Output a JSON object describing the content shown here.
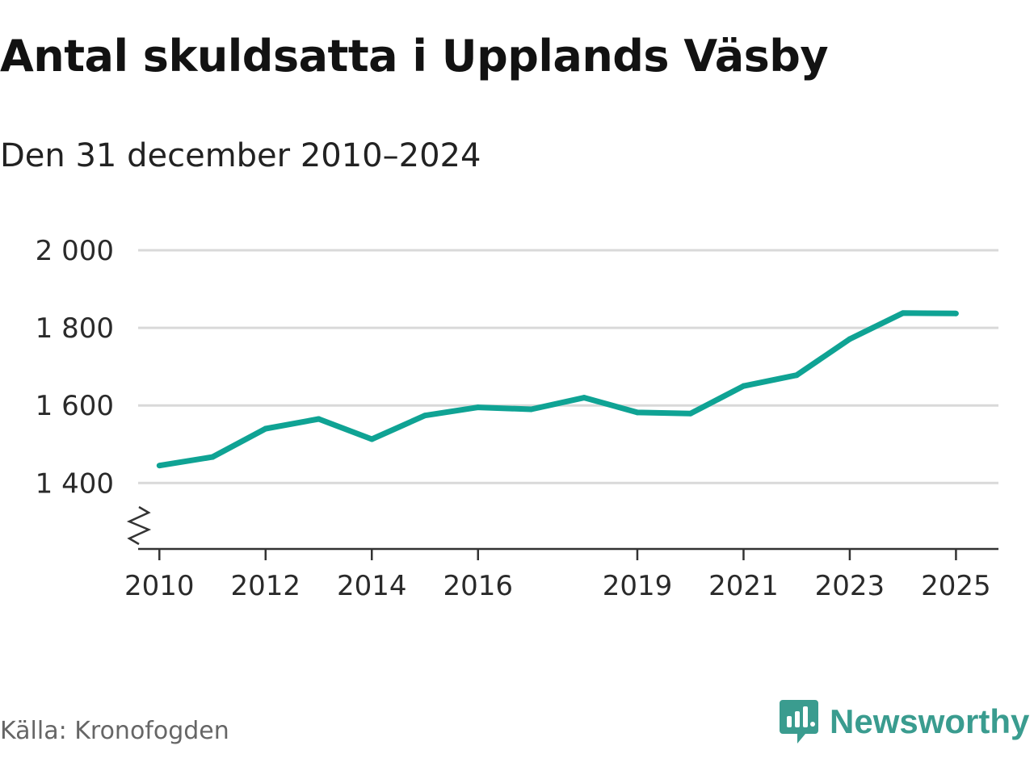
{
  "title": "Antal skuldsatta i Upplands Väsby",
  "subtitle": "Den 31 december 2010–2024",
  "source": "Källa: Kronofogden",
  "brand": {
    "name": "Newsworthy",
    "icon": "newsworthy-logo-icon",
    "color": "#3a9c8f"
  },
  "colors": {
    "line": "#0fa394",
    "grid": "#d9d9d9",
    "axis": "#333333"
  },
  "chart_data": {
    "type": "line",
    "title": "Antal skuldsatta i Upplands Väsby",
    "subtitle": "Den 31 december 2010–2024",
    "xlabel": "",
    "ylabel": "",
    "x": [
      2010,
      2011,
      2012,
      2013,
      2014,
      2015,
      2016,
      2017,
      2018,
      2019,
      2020,
      2021,
      2022,
      2023,
      2024,
      2025
    ],
    "values": [
      1445,
      1467,
      1540,
      1565,
      1513,
      1574,
      1595,
      1590,
      1620,
      1582,
      1579,
      1650,
      1678,
      1771,
      1838,
      1837
    ],
    "xticks": [
      "2010",
      "2012",
      "2014",
      "2016",
      "2019",
      "2021",
      "2023",
      "2025"
    ],
    "yticks": [
      "1 400",
      "1 600",
      "1 800",
      "2 000"
    ],
    "ytick_values": [
      1400,
      1600,
      1800,
      2000
    ],
    "ylim": [
      1230,
      2000
    ],
    "xlim": [
      2009.6,
      2025.8
    ],
    "axis_break": true,
    "grid": true
  }
}
